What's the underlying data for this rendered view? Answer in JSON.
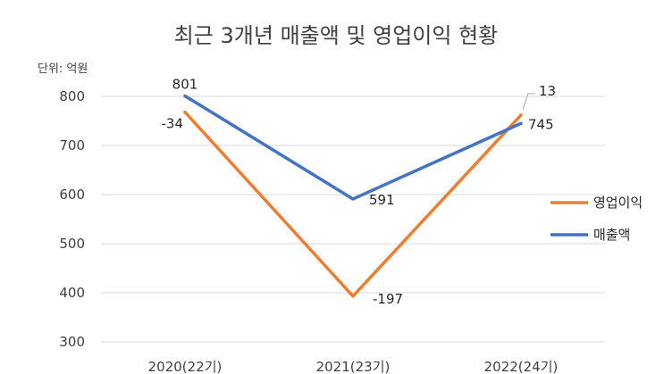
{
  "chart_data": {
    "type": "line",
    "title": "최근 3개년 매출액 및 영업이익 현황",
    "unit_label": "단위: 억원",
    "categories": [
      "2020(22기)",
      "2021(23기)",
      "2022(24기)"
    ],
    "ylim": [
      300,
      800
    ],
    "yticks": [
      300,
      400,
      500,
      600,
      700,
      800
    ],
    "grid": true,
    "legend_position": "right",
    "series": [
      {
        "name": "영업이익",
        "color": "#ED7D31",
        "plot_values": [
          768,
          393,
          762
        ],
        "labels": [
          "-34",
          "-197",
          "13"
        ]
      },
      {
        "name": "매출액",
        "color": "#4472C4",
        "plot_values": [
          801,
          591,
          745
        ],
        "labels": [
          "801",
          "591",
          "745"
        ]
      }
    ]
  }
}
